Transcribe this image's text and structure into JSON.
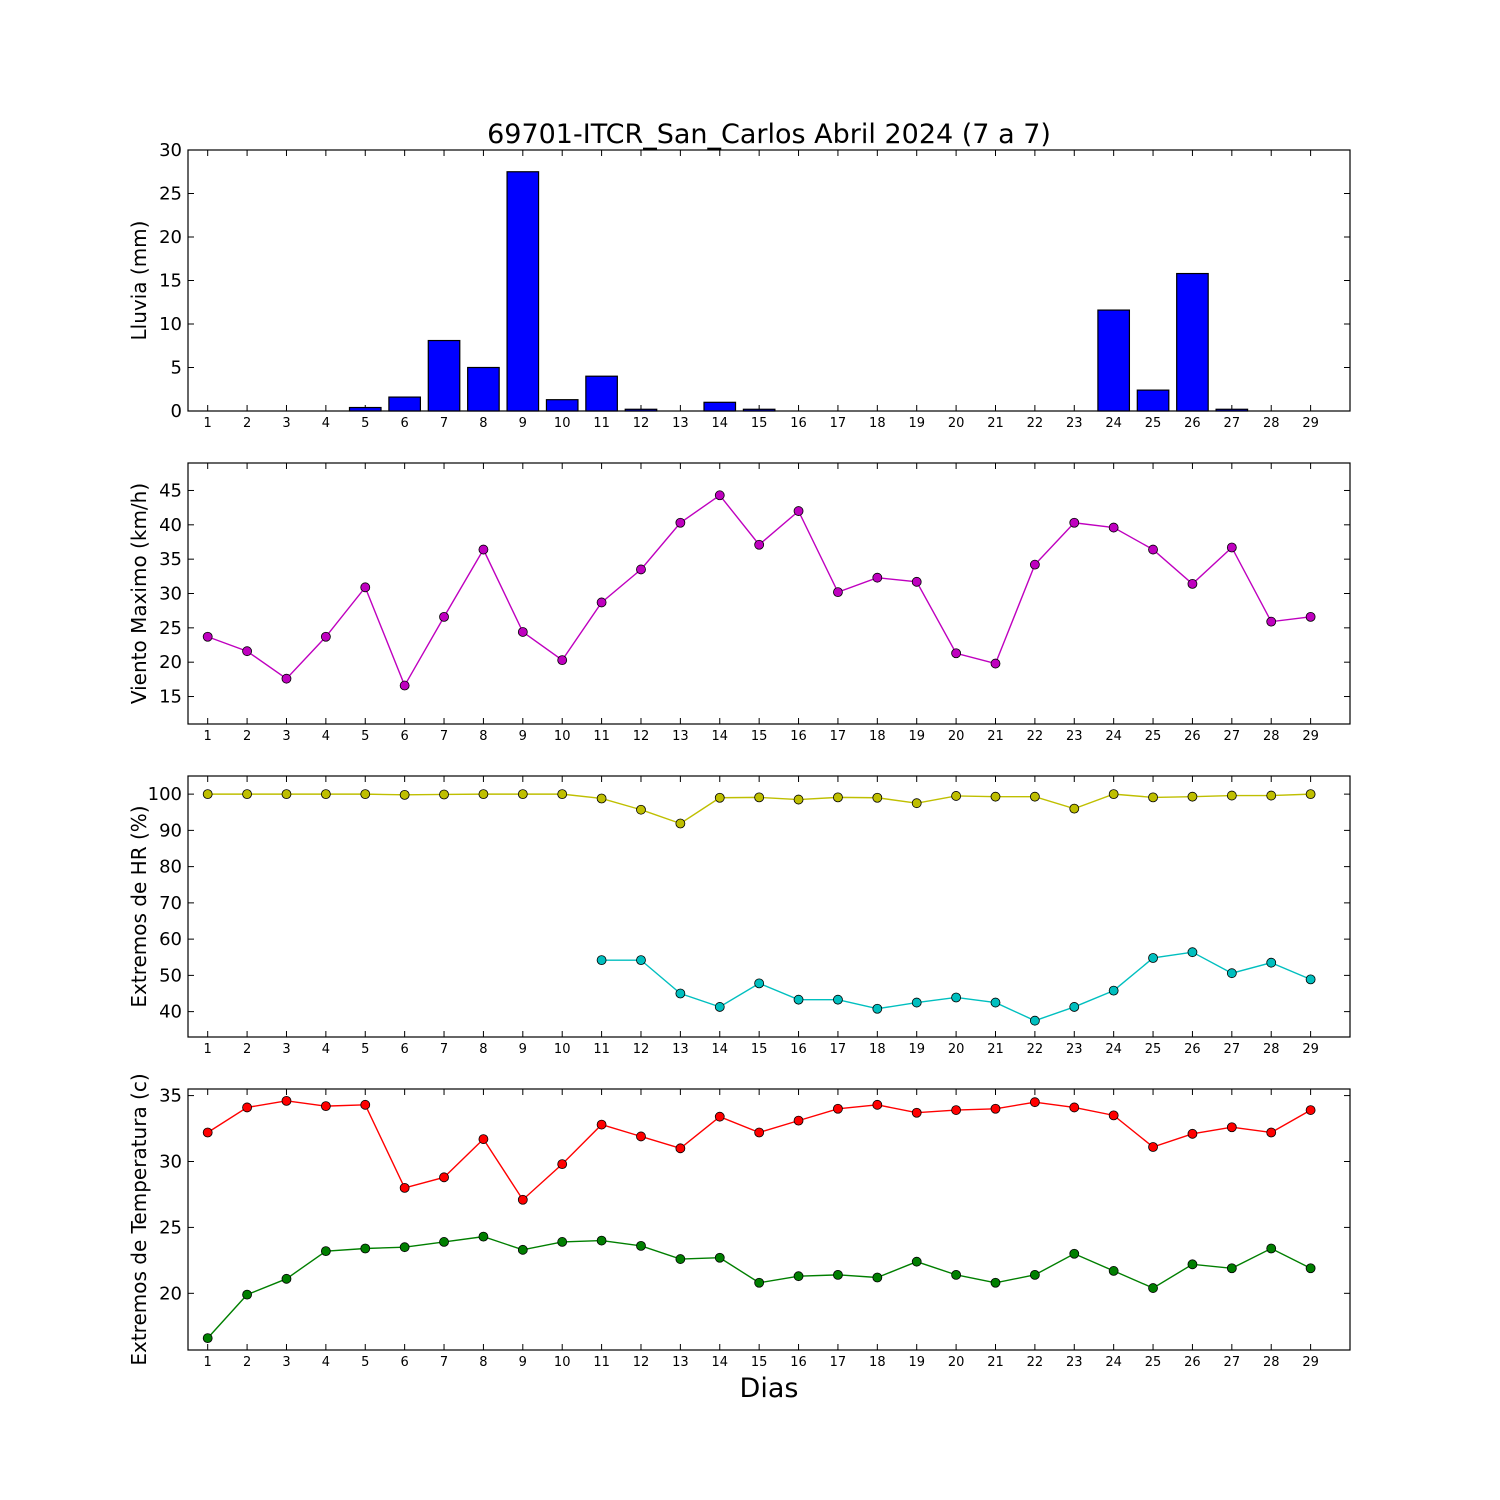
{
  "title": "69701-ITCR_San_Carlos Abril 2024  (7 a 7)",
  "xlabel": "Dias",
  "days": [
    1,
    2,
    3,
    4,
    5,
    6,
    7,
    8,
    9,
    10,
    11,
    12,
    13,
    14,
    15,
    16,
    17,
    18,
    19,
    20,
    21,
    22,
    23,
    24,
    25,
    26,
    27,
    28,
    29
  ],
  "chart_data": [
    {
      "type": "bar",
      "ylabel": "Lluvia (mm)",
      "ylim": [
        0,
        30
      ],
      "yticks": [
        0,
        5,
        10,
        15,
        20,
        25,
        30
      ],
      "grid": false,
      "series": [
        {
          "color": "#0000ff",
          "values": [
            0,
            0,
            0,
            0,
            0.4,
            1.6,
            8.1,
            5.0,
            27.5,
            1.3,
            4.0,
            0.2,
            0,
            1.0,
            0.2,
            0,
            0,
            0,
            0,
            0,
            0,
            0,
            0,
            11.6,
            2.4,
            15.8,
            0.2,
            0,
            0
          ]
        }
      ]
    },
    {
      "type": "line",
      "ylabel": "Viento Maximo (km/h)",
      "ylim": [
        11,
        49
      ],
      "yticks": [
        15,
        20,
        25,
        30,
        35,
        40,
        45
      ],
      "grid": false,
      "series": [
        {
          "color": "#bf00bf",
          "values": [
            23.7,
            21.6,
            17.6,
            23.7,
            30.9,
            16.6,
            26.6,
            36.4,
            24.4,
            20.3,
            28.7,
            33.5,
            40.3,
            44.3,
            37.1,
            42.0,
            30.2,
            32.3,
            31.7,
            21.3,
            19.8,
            34.2,
            40.3,
            39.6,
            36.4,
            31.4,
            36.7,
            25.9,
            26.6
          ]
        }
      ]
    },
    {
      "type": "line",
      "ylabel": "Extremos de HR (%)",
      "ylim": [
        33,
        105
      ],
      "yticks": [
        40,
        50,
        60,
        70,
        80,
        90,
        100
      ],
      "grid": false,
      "series": [
        {
          "color": "#bfbf00",
          "values": [
            100,
            100,
            100,
            100,
            100,
            99.8,
            99.9,
            100,
            100,
            100,
            98.8,
            95.7,
            91.9,
            99.0,
            99.1,
            98.5,
            99.1,
            99.0,
            97.5,
            99.5,
            99.3,
            99.3,
            96.0,
            100,
            99.1,
            99.3,
            99.6,
            99.6,
            100
          ]
        },
        {
          "color": "#00bfbf",
          "values": [
            null,
            null,
            null,
            null,
            null,
            null,
            null,
            null,
            null,
            null,
            54.2,
            54.2,
            45.0,
            41.3,
            47.8,
            43.3,
            43.3,
            40.8,
            42.5,
            43.9,
            42.5,
            37.5,
            41.3,
            45.8,
            54.8,
            56.4,
            50.6,
            53.5,
            48.9
          ]
        }
      ]
    },
    {
      "type": "line",
      "ylabel": "Extremos de Temperatura (c)",
      "ylim": [
        15.7,
        35.5
      ],
      "yticks": [
        20,
        25,
        30,
        35
      ],
      "grid": false,
      "series": [
        {
          "color": "#ff0000",
          "values": [
            32.2,
            34.1,
            34.6,
            34.2,
            34.3,
            28.0,
            28.8,
            31.7,
            27.1,
            29.8,
            32.8,
            31.9,
            31.0,
            33.4,
            32.2,
            33.1,
            34.0,
            34.3,
            33.7,
            33.9,
            34.0,
            34.5,
            34.1,
            33.5,
            31.1,
            32.1,
            32.6,
            32.2,
            33.9
          ]
        },
        {
          "color": "#007f00",
          "values": [
            16.6,
            19.9,
            21.1,
            23.2,
            23.4,
            23.5,
            23.9,
            24.3,
            23.3,
            23.9,
            24.0,
            23.6,
            22.6,
            22.7,
            20.8,
            21.3,
            21.4,
            21.2,
            22.4,
            21.4,
            20.8,
            21.4,
            23.0,
            21.7,
            20.4,
            22.2,
            21.9,
            23.4,
            21.9
          ]
        }
      ]
    }
  ]
}
